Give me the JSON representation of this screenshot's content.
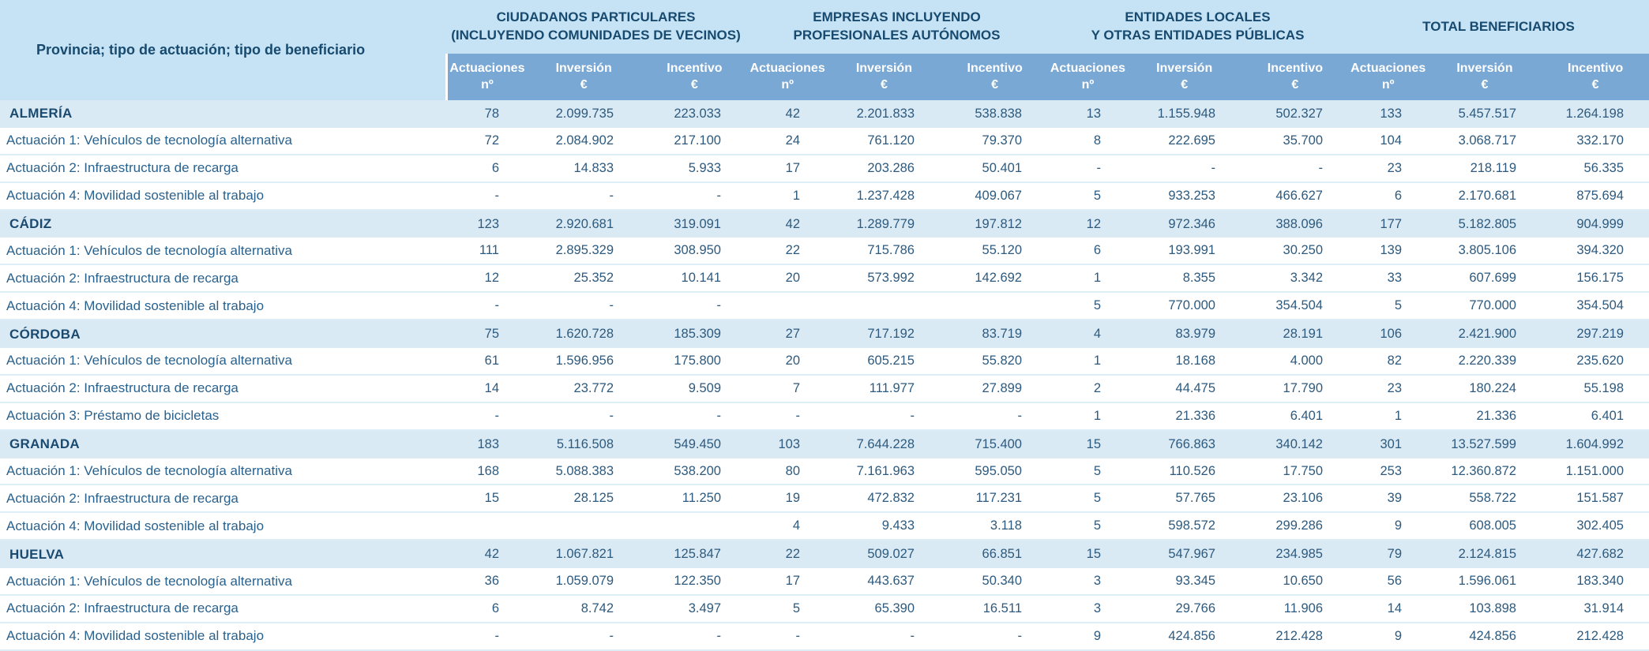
{
  "colors": {
    "header_band": "#c5e3f5",
    "subheader_band": "#79a8d4",
    "province_row": "#daeaf4",
    "detail_row": "#ffffff",
    "row_divider": "#ddeef7",
    "header_text": "#174a6e",
    "subheader_text": "#ffffff",
    "value_text": "#2d5a7e"
  },
  "chart_data": {
    "type": "table",
    "row_header_label": "Provincia; tipo de actuación; tipo de beneficiario",
    "column_groups": [
      {
        "lines": [
          "CIUDADANOS PARTICULARES",
          "(INCLUYENDO COMUNIDADES DE VECINOS)"
        ]
      },
      {
        "lines": [
          "EMPRESAS INCLUYENDO",
          "PROFESIONALES AUTÓNOMOS"
        ]
      },
      {
        "lines": [
          "ENTIDADES LOCALES",
          "Y OTRAS ENTIDADES PÚBLICAS"
        ]
      },
      {
        "lines": [
          "TOTAL BENEFICIARIOS"
        ]
      }
    ],
    "sub_columns": [
      {
        "line1": "Actuaciones",
        "line2": "nº"
      },
      {
        "line1": "Inversión",
        "line2": "€"
      },
      {
        "line1": "Incentivo",
        "line2": "€"
      }
    ],
    "rows": [
      {
        "label": "ALMERÍA",
        "type": "province",
        "values": [
          "78",
          "2.099.735",
          "223.033",
          "42",
          "2.201.833",
          "538.838",
          "13",
          "1.155.948",
          "502.327",
          "133",
          "5.457.517",
          "1.264.198"
        ]
      },
      {
        "label": "Actuación 1: Vehículos de tecnología alternativa",
        "type": "detail",
        "values": [
          "72",
          "2.084.902",
          "217.100",
          "24",
          "761.120",
          "79.370",
          "8",
          "222.695",
          "35.700",
          "104",
          "3.068.717",
          "332.170"
        ]
      },
      {
        "label": "Actuación 2: Infraestructura de recarga",
        "type": "detail",
        "values": [
          "6",
          "14.833",
          "5.933",
          "17",
          "203.286",
          "50.401",
          "-",
          "-",
          "-",
          "23",
          "218.119",
          "56.335"
        ]
      },
      {
        "label": "Actuación 4: Movilidad sostenible al trabajo",
        "type": "detail",
        "values": [
          "-",
          "-",
          "-",
          "1",
          "1.237.428",
          "409.067",
          "5",
          "933.253",
          "466.627",
          "6",
          "2.170.681",
          "875.694"
        ]
      },
      {
        "label": "CÁDIZ",
        "type": "province",
        "values": [
          "123",
          "2.920.681",
          "319.091",
          "42",
          "1.289.779",
          "197.812",
          "12",
          "972.346",
          "388.096",
          "177",
          "5.182.805",
          "904.999"
        ]
      },
      {
        "label": "Actuación 1: Vehículos de tecnología alternativa",
        "type": "detail",
        "values": [
          "111",
          "2.895.329",
          "308.950",
          "22",
          "715.786",
          "55.120",
          "6",
          "193.991",
          "30.250",
          "139",
          "3.805.106",
          "394.320"
        ]
      },
      {
        "label": "Actuación 2: Infraestructura de recarga",
        "type": "detail",
        "values": [
          "12",
          "25.352",
          "10.141",
          "20",
          "573.992",
          "142.692",
          "1",
          "8.355",
          "3.342",
          "33",
          "607.699",
          "156.175"
        ]
      },
      {
        "label": "Actuación 4: Movilidad sostenible al trabajo",
        "type": "detail",
        "values": [
          "-",
          "-",
          "-",
          "",
          "",
          "",
          "5",
          "770.000",
          "354.504",
          "5",
          "770.000",
          "354.504"
        ]
      },
      {
        "label": "CÓRDOBA",
        "type": "province",
        "values": [
          "75",
          "1.620.728",
          "185.309",
          "27",
          "717.192",
          "83.719",
          "4",
          "83.979",
          "28.191",
          "106",
          "2.421.900",
          "297.219"
        ]
      },
      {
        "label": "Actuación 1: Vehículos de tecnología alternativa",
        "type": "detail",
        "values": [
          "61",
          "1.596.956",
          "175.800",
          "20",
          "605.215",
          "55.820",
          "1",
          "18.168",
          "4.000",
          "82",
          "2.220.339",
          "235.620"
        ]
      },
      {
        "label": "Actuación 2: Infraestructura de recarga",
        "type": "detail",
        "values": [
          "14",
          "23.772",
          "9.509",
          "7",
          "111.977",
          "27.899",
          "2",
          "44.475",
          "17.790",
          "23",
          "180.224",
          "55.198"
        ]
      },
      {
        "label": "Actuación 3: Préstamo de bicicletas",
        "type": "detail",
        "values": [
          "-",
          "-",
          "-",
          "-",
          "-",
          "-",
          "1",
          "21.336",
          "6.401",
          "1",
          "21.336",
          "6.401"
        ]
      },
      {
        "label": "GRANADA",
        "type": "province",
        "values": [
          "183",
          "5.116.508",
          "549.450",
          "103",
          "7.644.228",
          "715.400",
          "15",
          "766.863",
          "340.142",
          "301",
          "13.527.599",
          "1.604.992"
        ]
      },
      {
        "label": "Actuación 1: Vehículos de tecnología alternativa",
        "type": "detail",
        "values": [
          "168",
          "5.088.383",
          "538.200",
          "80",
          "7.161.963",
          "595.050",
          "5",
          "110.526",
          "17.750",
          "253",
          "12.360.872",
          "1.151.000"
        ]
      },
      {
        "label": "Actuación 2: Infraestructura de recarga",
        "type": "detail",
        "values": [
          "15",
          "28.125",
          "11.250",
          "19",
          "472.832",
          "117.231",
          "5",
          "57.765",
          "23.106",
          "39",
          "558.722",
          "151.587"
        ]
      },
      {
        "label": "Actuación 4: Movilidad sostenible al trabajo",
        "type": "detail",
        "values": [
          "",
          "",
          "",
          "4",
          "9.433",
          "3.118",
          "5",
          "598.572",
          "299.286",
          "9",
          "608.005",
          "302.405"
        ]
      },
      {
        "label": "HUELVA",
        "type": "province",
        "values": [
          "42",
          "1.067.821",
          "125.847",
          "22",
          "509.027",
          "66.851",
          "15",
          "547.967",
          "234.985",
          "79",
          "2.124.815",
          "427.682"
        ]
      },
      {
        "label": "Actuación 1: Vehículos de tecnología alternativa",
        "type": "detail",
        "values": [
          "36",
          "1.059.079",
          "122.350",
          "17",
          "443.637",
          "50.340",
          "3",
          "93.345",
          "10.650",
          "56",
          "1.596.061",
          "183.340"
        ]
      },
      {
        "label": "Actuación 2: Infraestructura de recarga",
        "type": "detail",
        "values": [
          "6",
          "8.742",
          "3.497",
          "5",
          "65.390",
          "16.511",
          "3",
          "29.766",
          "11.906",
          "14",
          "103.898",
          "31.914"
        ]
      },
      {
        "label": "Actuación 4: Movilidad sostenible al trabajo",
        "type": "detail",
        "values": [
          "-",
          "-",
          "-",
          "-",
          "-",
          "-",
          "9",
          "424.856",
          "212.428",
          "9",
          "424.856",
          "212.428"
        ]
      }
    ]
  }
}
